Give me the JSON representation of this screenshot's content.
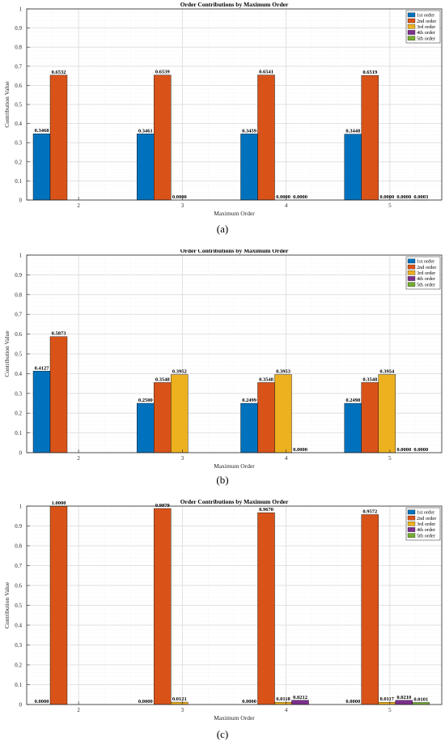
{
  "colors": [
    "#0072BD",
    "#D95319",
    "#EDB120",
    "#7E2F8E",
    "#77AC30"
  ],
  "chart_data": [
    {
      "type": "bar",
      "panel_label": "(a)",
      "title": "Order Contributions by Maximum Order",
      "xlabel": "Maximum Order",
      "ylabel": "Contribution Value",
      "ylim": [
        0,
        1
      ],
      "yticks": [
        "0",
        "0.1",
        "0.2",
        "0.3",
        "0.4",
        "0.5",
        "0.6",
        "0.7",
        "0.8",
        "0.9",
        "1"
      ],
      "categories": [
        "2",
        "3",
        "4",
        "5"
      ],
      "grid": true,
      "legend_position": "top-right",
      "series": [
        {
          "name": "1st order",
          "values": [
            0.3468,
            0.3461,
            0.3459,
            0.3448
          ],
          "labels": [
            "0.3468",
            "0.3461",
            "0.3459",
            "0.3448"
          ]
        },
        {
          "name": "2nd order",
          "values": [
            0.6532,
            0.6539,
            0.6541,
            0.6519
          ],
          "labels": [
            "0.6532",
            "0.6539",
            "0.6541",
            "0.6519"
          ]
        },
        {
          "name": "3rd order",
          "values": [
            null,
            0.0,
            0.0,
            0.0
          ],
          "labels": [
            "",
            "0.0000",
            "0.0000",
            "0.0000"
          ]
        },
        {
          "name": "4th order",
          "values": [
            null,
            null,
            0.0,
            0.0
          ],
          "labels": [
            "",
            "",
            "0.0000",
            "0.0000"
          ]
        },
        {
          "name": "5th order",
          "values": [
            null,
            null,
            null,
            0.0003
          ],
          "labels": [
            "",
            "",
            "",
            "0.0003"
          ]
        }
      ]
    },
    {
      "type": "bar",
      "panel_label": "(b)",
      "title": "Order Contributions by Maximum Order",
      "xlabel": "Maximum Order",
      "ylabel": "Contribution Value",
      "ylim": [
        0,
        1
      ],
      "yticks": [
        "0",
        "0.1",
        "0.2",
        "0.3",
        "0.4",
        "0.5",
        "0.6",
        "0.7",
        "0.8",
        "0.9",
        "1"
      ],
      "categories": [
        "2",
        "3",
        "4",
        "5"
      ],
      "grid": true,
      "legend_position": "top-right",
      "series": [
        {
          "name": "1st order",
          "values": [
            0.4127,
            0.25,
            0.2499,
            0.2498
          ],
          "labels": [
            "0.4127",
            "0.2500",
            "0.2499",
            "0.2498"
          ]
        },
        {
          "name": "2nd order",
          "values": [
            0.5873,
            0.3548,
            0.3548,
            0.3548
          ],
          "labels": [
            "0.5873",
            "0.3548",
            "0.3548",
            "0.3548"
          ]
        },
        {
          "name": "3rd order",
          "values": [
            null,
            0.3952,
            0.3953,
            0.3954
          ],
          "labels": [
            "",
            "0.3952",
            "0.3953",
            "0.3954"
          ]
        },
        {
          "name": "4th order",
          "values": [
            null,
            null,
            0.0,
            0.0
          ],
          "labels": [
            "",
            "",
            "0.0000",
            "0.0000"
          ]
        },
        {
          "name": "5th order",
          "values": [
            null,
            null,
            null,
            0.0
          ],
          "labels": [
            "",
            "",
            "",
            "0.0000"
          ]
        }
      ]
    },
    {
      "type": "bar",
      "panel_label": "(c)",
      "title": "Order Contributions by Maximum Order",
      "xlabel": "Maximum Order",
      "ylabel": "Contribution Value",
      "ylim": [
        0,
        1
      ],
      "yticks": [
        "0",
        "0.1",
        "0.2",
        "0.3",
        "0.4",
        "0.5",
        "0.6",
        "0.7",
        "0.8",
        "0.9",
        "1"
      ],
      "categories": [
        "2",
        "3",
        "4",
        "5"
      ],
      "grid": true,
      "legend_position": "top-right",
      "series": [
        {
          "name": "1st order",
          "values": [
            0.0,
            0.0,
            0.0,
            0.0
          ],
          "labels": [
            "0.0000",
            "0.0000",
            "0.0000",
            "0.0000"
          ]
        },
        {
          "name": "2nd order",
          "values": [
            1.0,
            0.9879,
            0.967,
            0.9572
          ],
          "labels": [
            "1.0000",
            "0.9879",
            "0.9670",
            "0.9572"
          ]
        },
        {
          "name": "3rd order",
          "values": [
            null,
            0.0121,
            0.0118,
            0.0117
          ],
          "labels": [
            "",
            "0.0121",
            "0.0118",
            "0.0117"
          ]
        },
        {
          "name": "4th order",
          "values": [
            null,
            null,
            0.0212,
            0.021
          ],
          "labels": [
            "",
            "",
            "0.0212",
            "0.0210"
          ]
        },
        {
          "name": "5th order",
          "values": [
            null,
            null,
            null,
            0.0101
          ],
          "labels": [
            "",
            "",
            "",
            "0.0101"
          ]
        }
      ]
    }
  ]
}
